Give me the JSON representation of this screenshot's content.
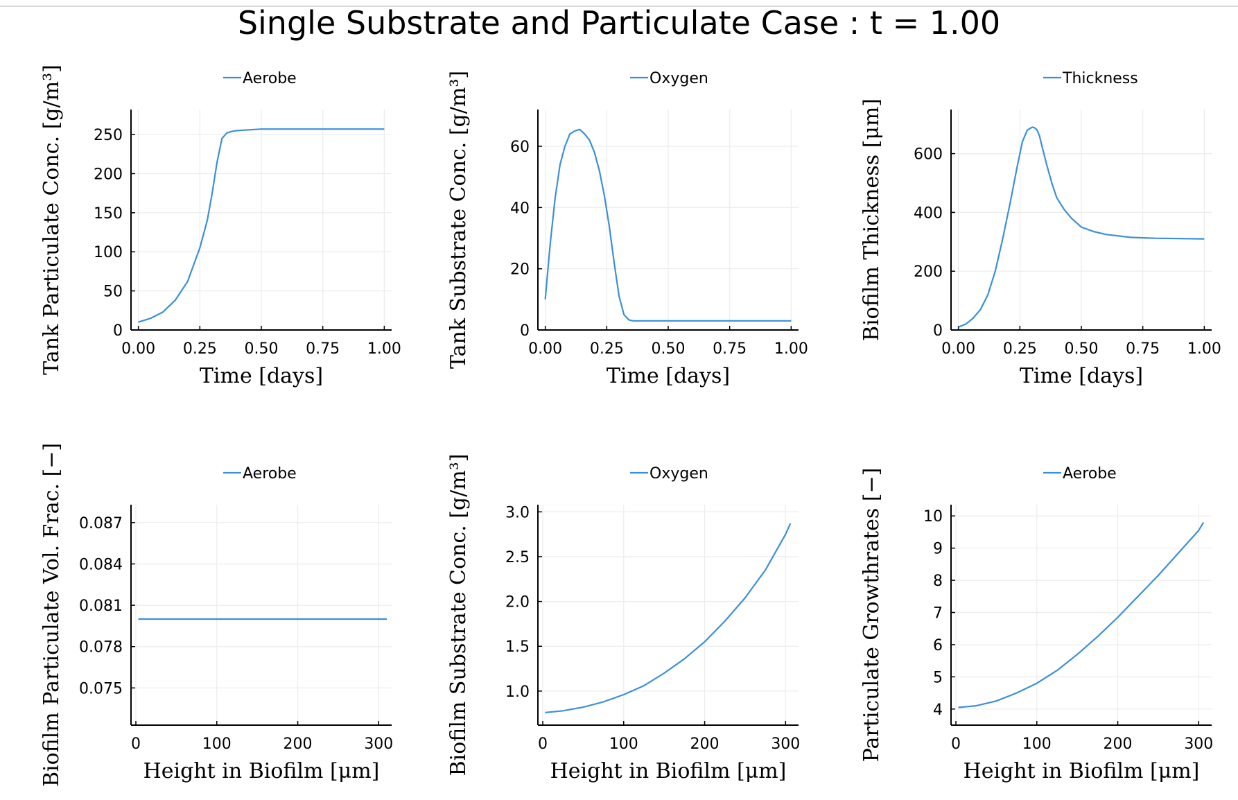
{
  "figure": {
    "title": "Single Substrate and Particulate Case : t = 1.00"
  },
  "colors": {
    "series": "#3b8fd9",
    "grid": "#ececec",
    "axis": "#000000"
  },
  "chart_data": [
    {
      "type": "line",
      "xlabel": "Time [days]",
      "ylabel": "Tank Particulate Conc. [g/m³]",
      "xlim": [
        -0.03,
        1.03
      ],
      "ylim": [
        0,
        282
      ],
      "xticks": [
        0,
        0.25,
        0.5,
        0.75,
        1.0
      ],
      "xtick_labels": [
        "0.00",
        "0.25",
        "0.50",
        "0.75",
        "1.00"
      ],
      "yticks": [
        0,
        50,
        100,
        150,
        200,
        250
      ],
      "ytick_labels": [
        "0",
        "50",
        "100",
        "150",
        "200",
        "250"
      ],
      "legend": "top",
      "grid": true,
      "series": [
        {
          "name": "Aerobe",
          "x": [
            0,
            0.05,
            0.1,
            0.15,
            0.2,
            0.25,
            0.28,
            0.3,
            0.32,
            0.34,
            0.36,
            0.38,
            0.4,
            0.45,
            0.5,
            0.6,
            0.75,
            1.0
          ],
          "y": [
            10,
            15,
            23,
            38,
            62,
            105,
            140,
            175,
            215,
            245,
            252,
            254,
            255,
            256,
            257,
            257,
            257,
            257
          ]
        }
      ]
    },
    {
      "type": "line",
      "xlabel": "Time [days]",
      "ylabel": "Tank Substrate Conc. [g/m³]",
      "xlim": [
        -0.03,
        1.03
      ],
      "ylim": [
        0,
        72
      ],
      "xticks": [
        0,
        0.25,
        0.5,
        0.75,
        1.0
      ],
      "xtick_labels": [
        "0.00",
        "0.25",
        "0.50",
        "0.75",
        "1.00"
      ],
      "yticks": [
        0,
        20,
        40,
        60
      ],
      "ytick_labels": [
        "0",
        "20",
        "40",
        "60"
      ],
      "legend": "top",
      "grid": true,
      "series": [
        {
          "name": "Oxygen",
          "x": [
            0,
            0.02,
            0.04,
            0.06,
            0.08,
            0.1,
            0.12,
            0.14,
            0.16,
            0.18,
            0.2,
            0.22,
            0.24,
            0.26,
            0.28,
            0.3,
            0.32,
            0.34,
            0.35,
            0.36,
            0.38,
            0.45,
            0.6,
            0.8,
            1.0
          ],
          "y": [
            10,
            28,
            43,
            54,
            60,
            64,
            65,
            65.5,
            64,
            62,
            58,
            52,
            44,
            34,
            22,
            11,
            5,
            3.3,
            3.1,
            3.0,
            3.0,
            3.0,
            3.0,
            3.0,
            3.0
          ]
        }
      ]
    },
    {
      "type": "line",
      "xlabel": "Time [days]",
      "ylabel": "Biofilm Thickness [μm]",
      "xlim": [
        -0.03,
        1.03
      ],
      "ylim": [
        0,
        750
      ],
      "xticks": [
        0,
        0.25,
        0.5,
        0.75,
        1.0
      ],
      "xtick_labels": [
        "0.00",
        "0.25",
        "0.50",
        "0.75",
        "1.00"
      ],
      "yticks": [
        0,
        200,
        400,
        600
      ],
      "ytick_labels": [
        "0",
        "200",
        "400",
        "600"
      ],
      "legend": "top",
      "grid": true,
      "series": [
        {
          "name": "Thickness",
          "x": [
            0,
            0.03,
            0.06,
            0.09,
            0.12,
            0.15,
            0.18,
            0.21,
            0.24,
            0.26,
            0.28,
            0.3,
            0.31,
            0.32,
            0.33,
            0.34,
            0.36,
            0.38,
            0.4,
            0.43,
            0.46,
            0.5,
            0.55,
            0.6,
            0.7,
            0.8,
            1.0
          ],
          "y": [
            10,
            20,
            40,
            70,
            120,
            200,
            310,
            430,
            560,
            640,
            680,
            690,
            688,
            680,
            660,
            625,
            560,
            500,
            450,
            410,
            380,
            350,
            335,
            325,
            315,
            312,
            310
          ]
        }
      ]
    },
    {
      "type": "line",
      "xlabel": "Height in Biofilm [μm]",
      "ylabel": "Biofilm Particulate Vol. Frac. [−]",
      "xlim": [
        -6,
        316
      ],
      "ylim": [
        0.0723,
        0.0883
      ],
      "xticks": [
        0,
        100,
        200,
        300
      ],
      "xtick_labels": [
        "0",
        "100",
        "200",
        "300"
      ],
      "yticks": [
        0.075,
        0.078,
        0.081,
        0.084,
        0.087
      ],
      "ytick_labels": [
        "0.075",
        "0.078",
        "0.081",
        "0.084",
        "0.087"
      ],
      "legend": "top",
      "grid": true,
      "series": [
        {
          "name": "Aerobe",
          "x": [
            3,
            310
          ],
          "y": [
            0.08,
            0.08
          ]
        }
      ]
    },
    {
      "type": "line",
      "xlabel": "Height in Biofilm [μm]",
      "ylabel": "Biofilm Substrate Conc. [g/m³]",
      "xlim": [
        -6,
        316
      ],
      "ylim": [
        0.62,
        3.08
      ],
      "xticks": [
        0,
        100,
        200,
        300
      ],
      "xtick_labels": [
        "0",
        "100",
        "200",
        "300"
      ],
      "yticks": [
        1.0,
        1.5,
        2.0,
        2.5,
        3.0
      ],
      "ytick_labels": [
        "1.0",
        "1.5",
        "2.0",
        "2.5",
        "3.0"
      ],
      "legend": "top",
      "grid": true,
      "series": [
        {
          "name": "Oxygen",
          "x": [
            3,
            25,
            50,
            75,
            100,
            125,
            150,
            175,
            200,
            225,
            250,
            275,
            300,
            306
          ],
          "y": [
            0.76,
            0.78,
            0.82,
            0.88,
            0.96,
            1.06,
            1.2,
            1.36,
            1.55,
            1.78,
            2.04,
            2.35,
            2.75,
            2.87
          ]
        }
      ]
    },
    {
      "type": "line",
      "xlabel": "Height in Biofilm [μm]",
      "ylabel": "Particulate Growthrates [−]",
      "xlim": [
        -6,
        316
      ],
      "ylim": [
        3.5,
        10.35
      ],
      "xticks": [
        0,
        100,
        200,
        300
      ],
      "xtick_labels": [
        "0",
        "100",
        "200",
        "300"
      ],
      "yticks": [
        4,
        5,
        6,
        7,
        8,
        9,
        10
      ],
      "ytick_labels": [
        "4",
        "5",
        "6",
        "7",
        "8",
        "9",
        "10"
      ],
      "legend": "top",
      "grid": true,
      "series": [
        {
          "name": "Aerobe",
          "x": [
            3,
            25,
            50,
            75,
            100,
            125,
            150,
            175,
            200,
            225,
            250,
            275,
            300,
            306
          ],
          "y": [
            4.05,
            4.1,
            4.25,
            4.5,
            4.8,
            5.2,
            5.7,
            6.25,
            6.85,
            7.5,
            8.15,
            8.85,
            9.55,
            9.8
          ]
        }
      ]
    }
  ]
}
